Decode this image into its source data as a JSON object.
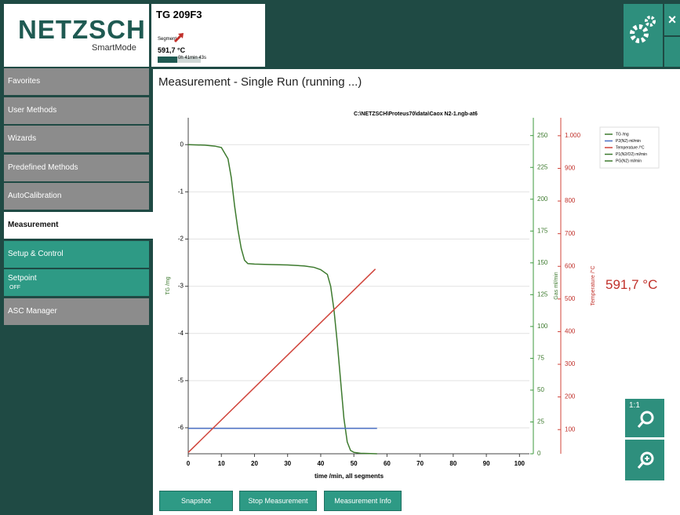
{
  "logo": {
    "brand": "NETZSCH",
    "mode": "SmartMode"
  },
  "instrument": {
    "name": "TG 209F3",
    "segment_label": "Segment",
    "temperature": "591,7 °C",
    "elapsed": "0h 41min 43s",
    "progress": 45
  },
  "sidebar": [
    {
      "label": "Favorites",
      "state": "gray"
    },
    {
      "label": "User Methods",
      "state": "gray"
    },
    {
      "label": "Wizards",
      "state": "gray"
    },
    {
      "label": "Predefined Methods",
      "state": "gray"
    },
    {
      "label": "AutoCalibration",
      "state": "gray"
    },
    {
      "label": "Measurement",
      "state": "selected"
    },
    {
      "label": "Setup & Control",
      "state": "teal"
    },
    {
      "label": "Setpoint",
      "sub": "OFF",
      "state": "teal"
    },
    {
      "label": "ASC Manager",
      "state": "gray"
    }
  ],
  "page_title": "Measurement - Single Run (running ...)",
  "current_temperature": "591,7 °C",
  "buttons": [
    "Snapshot",
    "Stop Measurement",
    "Measurement Info"
  ],
  "zoom_label": "1:1",
  "chart_data": {
    "type": "line",
    "title": "C:\\NETZSCH\\Proteus70\\data\\Caox N2-1.ngb-at6",
    "xlabel": "time /min, all segments",
    "ylabel": "TG /mg",
    "y2label": "Gas ml/min",
    "y3label": "Temperature /°C",
    "xlim": [
      0,
      103
    ],
    "xticks": [
      0,
      10,
      20,
      30,
      40,
      50,
      60,
      70,
      80,
      90,
      100
    ],
    "ylim": [
      -6.55,
      0.57
    ],
    "yticks": [
      0,
      -1,
      -2,
      -3,
      -4,
      -5,
      -6
    ],
    "y2lim": [
      0,
      264
    ],
    "y2ticks": [
      0,
      25,
      50,
      75,
      100,
      125,
      150,
      175,
      200,
      225,
      250
    ],
    "y3lim": [
      26,
      1055
    ],
    "y3ticks": [
      100,
      200,
      300,
      400,
      500,
      600,
      700,
      800,
      900,
      {
        "value": 1000,
        "label": "1.000"
      }
    ],
    "grid": true,
    "series": [
      {
        "name": "TG /mg",
        "color": "#3d7a2e",
        "axis": "y",
        "x": [
          0,
          5,
          8,
          10,
          12,
          13,
          14,
          15,
          16,
          17,
          18,
          20,
          25,
          30,
          35,
          38,
          40,
          42,
          43,
          44,
          45,
          46,
          47,
          48,
          49,
          50,
          52,
          57
        ],
        "values": [
          0,
          -0.01,
          -0.03,
          -0.06,
          -0.3,
          -0.7,
          -1.3,
          -1.8,
          -2.2,
          -2.45,
          -2.52,
          -2.53,
          -2.54,
          -2.55,
          -2.57,
          -2.6,
          -2.65,
          -2.75,
          -3.0,
          -3.5,
          -4.2,
          -5.0,
          -5.8,
          -6.3,
          -6.48,
          -6.52,
          -6.54,
          -6.55
        ]
      },
      {
        "name": "P2(N2) ml/min",
        "color": "#4a6fc4",
        "axis": "y2",
        "x": [
          0,
          57
        ],
        "values": [
          20,
          20
        ]
      },
      {
        "name": "Temperature /°C",
        "color": "#d0433a",
        "axis": "y3",
        "x": [
          0,
          56.5
        ],
        "values": [
          30,
          591.7
        ]
      }
    ],
    "legend_extra": [
      {
        "name": "P1(N2/O2) ml/min",
        "color": "#3d7a2e"
      },
      {
        "name": "PG(N2) ml/min",
        "color": "#3d7a2e"
      }
    ]
  }
}
